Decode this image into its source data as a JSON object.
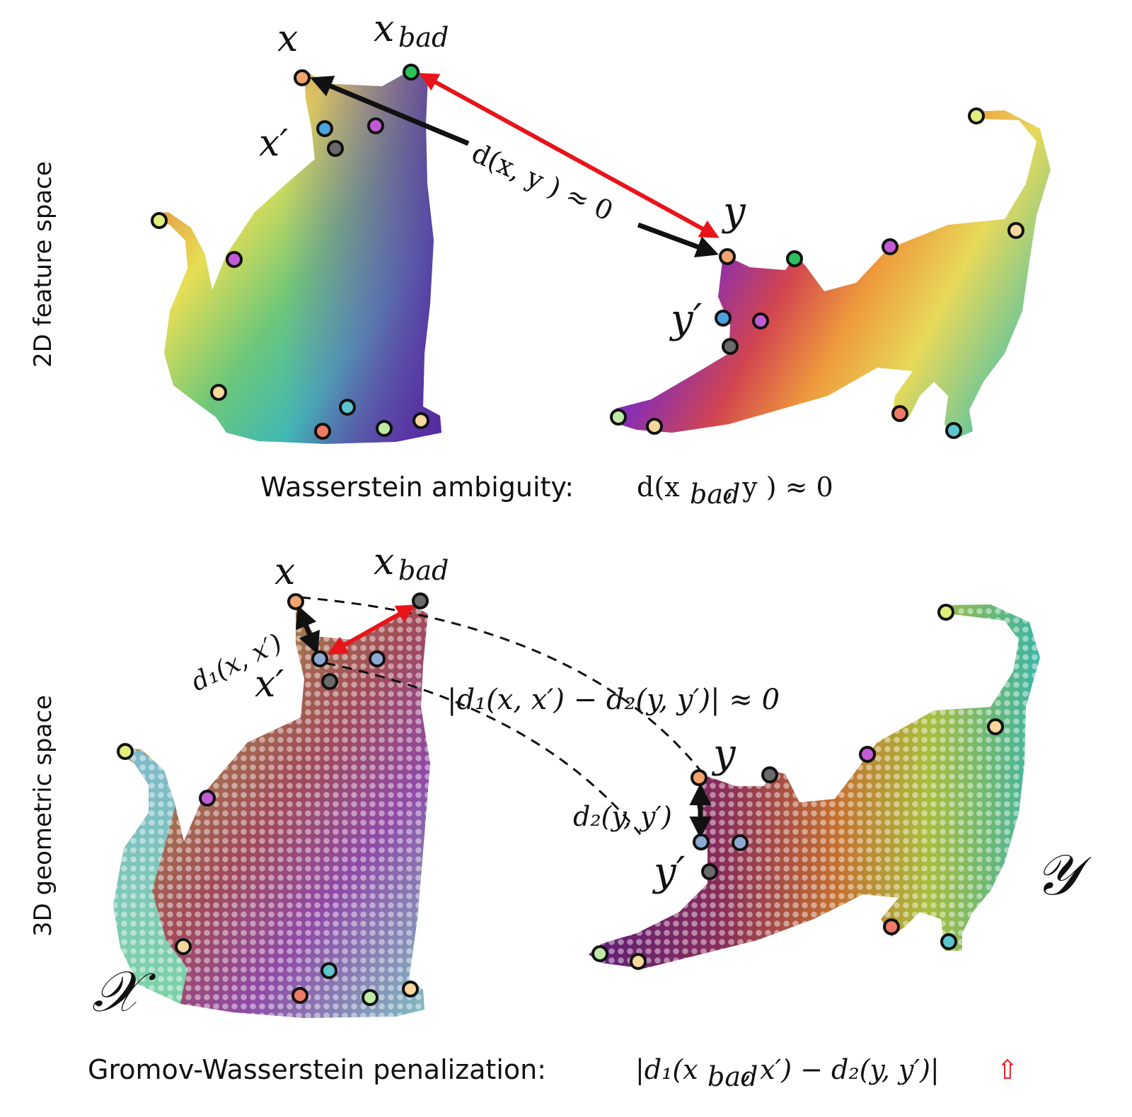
{
  "panels": {
    "top": {
      "label": "2D feature space"
    },
    "bottom": {
      "label": "3D geometric space"
    }
  },
  "labels": {
    "x": "x",
    "x_bad": "x",
    "x_bad_sub": "bad",
    "x_prime": "x′",
    "y": "y",
    "y_prime": "y′",
    "set_x": "𝒳",
    "set_y": "𝒴",
    "d_xy": "d(x, y ) ≈ 0",
    "d1": "d₁(x, x′)",
    "d2": "d₂(y, y′)",
    "gw_diff": "|d₁(x, x′) − d₂(y, y′)| ≈ 0"
  },
  "captions": {
    "top_text": "Wasserstein ambiguity:",
    "top_math": "d(x",
    "top_math_sub": "bad",
    "top_math_rest": ", y ) ≈ 0",
    "bottom_text": "Gromov-Wasserstein penalization:",
    "bottom_math": "|d₁(x",
    "bottom_math_sub": "bad",
    "bottom_math_rest": ", x′) − d₂(y, y′)|",
    "bottom_arrow": "⇧"
  },
  "colors": {
    "arrow_red": "#e8141a",
    "arrow_black": "#111111",
    "pt_orange": "#f2a36e",
    "pt_green": "#2bc25a",
    "pt_blue": "#4aa3dc",
    "pt_purple": "#c25bd6",
    "pt_gray": "#6a6a6a",
    "pt_lightgreen": "#bfe9a6",
    "pt_yellowgreen": "#e2ef7a",
    "pt_peach": "#f6d79c",
    "pt_salmon": "#ef7a65",
    "pt_teal": "#5cc6cf",
    "pt_steel": "#8fa9d3"
  }
}
